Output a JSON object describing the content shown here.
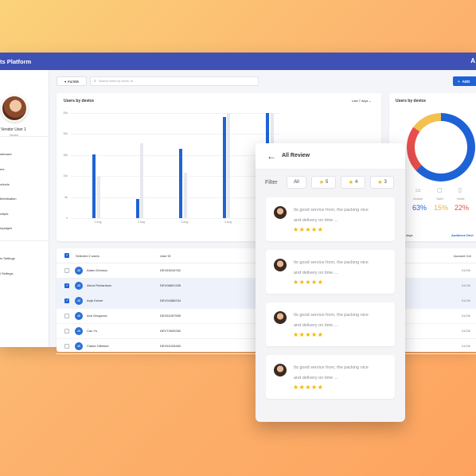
{
  "app": {
    "title": "ts Platform",
    "corner_glyph": "A"
  },
  "sidebar": {
    "user_name": "Vendor User 1",
    "user_role": "Vendor",
    "items": [
      {
        "label": "shboard"
      },
      {
        "label": "ers"
      },
      {
        "label": "oducts"
      },
      {
        "label": "thentication"
      },
      {
        "label": "ceipts"
      },
      {
        "label": "mpaigns"
      },
      {
        "label": "in Settings"
      },
      {
        "label": "l Settings"
      }
    ]
  },
  "toolbar": {
    "filter_label": "FILTER",
    "search_placeholder": "Search users by name, id",
    "add_label": "ADD"
  },
  "bar_card": {
    "title": "Users by device",
    "period": "Last 7 days"
  },
  "chart_data": {
    "type": "bar",
    "title": "Users by device",
    "categories": [
      "1 Aug",
      "2 Aug",
      "3 Aug",
      "4 Aug",
      "5 Aug"
    ],
    "y_ticks": [
      "25k",
      "20k",
      "15k",
      "10k",
      "5k",
      "0"
    ],
    "ylim": [
      0,
      28
    ],
    "series": [
      {
        "values": [
          17,
          5,
          18.5,
          27,
          28.5
        ],
        "color": "#1e63d6"
      },
      {
        "values": [
          11,
          20,
          12,
          29,
          29
        ],
        "color": "#e6e8ee"
      }
    ]
  },
  "donut_card": {
    "title": "Users by device",
    "segments": [
      {
        "label": "Desktop",
        "pct": "63%",
        "color": "#1e63d6"
      },
      {
        "label": "Tablet",
        "pct": "15%",
        "color": "#f2c14e"
      },
      {
        "label": "Mobile",
        "pct": "22%",
        "color": "#e84e4e"
      }
    ]
  },
  "table": {
    "selected_label": "Selected 2 users",
    "col_user_id": "User ID",
    "col_account": "Account Cre",
    "period_label": "days",
    "audience_label": "Audience Devi",
    "rows": [
      {
        "initials": "JC",
        "name": "Adam Denisov",
        "id": "DEV63016762",
        "date": "04/28/",
        "checked": false
      },
      {
        "initials": "JC",
        "name": "Alexa Richardson",
        "id": "DEV08801335",
        "date": "04/28/",
        "checked": true
      },
      {
        "initials": "JC",
        "name": "Anje Keizer",
        "id": "DEV04380234",
        "date": "04/28/",
        "checked": true
      },
      {
        "initials": "JC",
        "name": "Ava Gregoraci",
        "id": "DEV61057555",
        "date": "04/28/",
        "checked": false
      },
      {
        "initials": "JC",
        "name": "Cao Yu",
        "id": "DEV72600260",
        "date": "04/28/",
        "checked": false
      },
      {
        "initials": "JC",
        "name": "Clarke Gillebert",
        "id": "DEV51025460",
        "date": "04/28/",
        "checked": false
      }
    ]
  },
  "review": {
    "title": "All Review",
    "filter_label": "Filter",
    "chips": [
      {
        "label": "All",
        "star": false
      },
      {
        "label": "5",
        "star": true
      },
      {
        "label": "4",
        "star": true
      },
      {
        "label": "3",
        "star": true
      }
    ],
    "items": [
      {
        "line1": "Its good service from, the packing nice",
        "line2": "and delivery on time ...",
        "stars": "★★★★★",
        "rating": 5
      },
      {
        "line1": "Its good service from, the packing nice",
        "line2": "and delivery on time ...",
        "stars": "★★★★★",
        "rating": 5
      },
      {
        "line1": "Its good service from, the packing nice",
        "line2": "and delivery on time ...",
        "stars": "★★★★★",
        "rating": 5
      },
      {
        "line1": "Its good service from, the packing nice",
        "line2": "and delivery on time ...",
        "stars": "★★★★★",
        "rating": 5
      }
    ]
  }
}
